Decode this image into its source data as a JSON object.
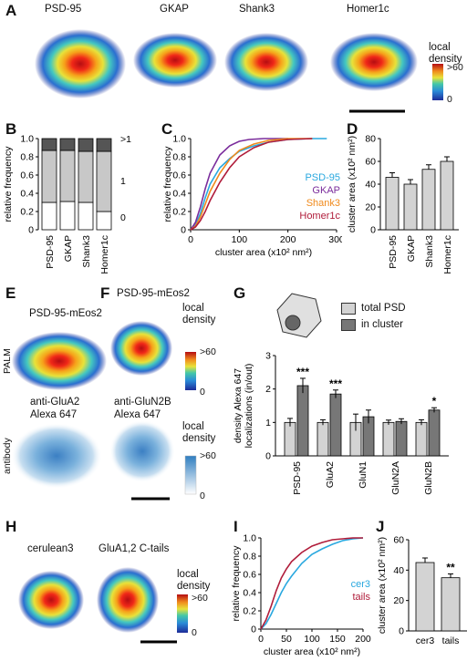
{
  "panels": {
    "A": {
      "letter": "A",
      "titles": [
        "PSD-95",
        "GKAP",
        "Shank3",
        "Homer1c"
      ],
      "density_label": [
        "local",
        "density"
      ],
      "density_max": ">60",
      "density_min": "0"
    },
    "B": {
      "letter": "B"
    },
    "C": {
      "letter": "C"
    },
    "D": {
      "letter": "D"
    },
    "E": {
      "letter": "E",
      "title": "PSD-95-mEos2",
      "row_top": "PALM",
      "antibody_title": [
        "anti-GluA2",
        "Alexa 647"
      ],
      "row_bottom": "antibody"
    },
    "F": {
      "letter": "F",
      "title": "PSD-95-mEos2",
      "antibody_title": [
        "anti-GluN2B",
        "Alexa 647"
      ],
      "density_label": [
        "local",
        "density"
      ],
      "density_max": ">60",
      "density_min": "0",
      "density_label2": [
        "local",
        "density"
      ],
      "density_max2": ">60",
      "density_min2": "0"
    },
    "G": {
      "letter": "G",
      "legend": [
        "total PSD",
        "in cluster"
      ]
    },
    "H": {
      "letter": "H",
      "titles": [
        "cerulean3",
        "GluA1,2 C-tails"
      ],
      "density_label": [
        "local",
        "density"
      ],
      "density_max": ">60",
      "density_min": "0"
    },
    "I": {
      "letter": "I"
    },
    "J": {
      "letter": "J"
    }
  },
  "chart_data": [
    {
      "id": "B",
      "type": "bar",
      "stacked": true,
      "categories": [
        "PSD-95",
        "GKAP",
        "Shank3",
        "Homer1c"
      ],
      "ylabel": "relative frequency",
      "ylim": [
        0,
        1
      ],
      "yticks": [
        "0",
        "0.2",
        "0.4",
        "0.6",
        "0.8",
        "1.0"
      ],
      "series": [
        {
          "name": "0",
          "values": [
            0.3,
            0.31,
            0.3,
            0.2
          ],
          "color": "#ffffff"
        },
        {
          "name": "1",
          "values": [
            0.57,
            0.56,
            0.56,
            0.66
          ],
          "color": "#c8c8c8"
        },
        {
          "name": ">1",
          "values": [
            0.13,
            0.13,
            0.14,
            0.14
          ],
          "color": "#555555"
        }
      ],
      "side_labels": [
        ">1",
        "1",
        "0"
      ]
    },
    {
      "id": "C",
      "type": "line",
      "xlabel": "cluster area (x10² nm²)",
      "ylabel": "relative frequency",
      "xlim": [
        0,
        300
      ],
      "ylim": [
        0,
        1
      ],
      "xticks": [
        "0",
        "100",
        "200",
        "300"
      ],
      "yticks": [
        "0",
        "0.2",
        "0.4",
        "0.6",
        "0.8",
        "1.0"
      ],
      "series": [
        {
          "name": "PSD-95",
          "color": "#29a8df",
          "x": [
            0,
            10,
            20,
            30,
            40,
            60,
            80,
            100,
            130,
            160,
            200,
            250,
            280
          ],
          "y": [
            0,
            0.05,
            0.18,
            0.35,
            0.5,
            0.68,
            0.78,
            0.86,
            0.92,
            0.96,
            0.99,
            1.0,
            1.0
          ]
        },
        {
          "name": "GKAP",
          "color": "#7b2d9c",
          "x": [
            0,
            10,
            20,
            30,
            40,
            60,
            80,
            100,
            120,
            150,
            200
          ],
          "y": [
            0,
            0.08,
            0.25,
            0.45,
            0.62,
            0.82,
            0.92,
            0.97,
            0.99,
            1.0,
            1.0
          ]
        },
        {
          "name": "Shank3",
          "color": "#f08a1c",
          "x": [
            0,
            10,
            20,
            30,
            40,
            60,
            80,
            100,
            130,
            160,
            200,
            250
          ],
          "y": [
            0,
            0.04,
            0.14,
            0.28,
            0.42,
            0.62,
            0.77,
            0.87,
            0.94,
            0.98,
            1.0,
            1.0
          ]
        },
        {
          "name": "Homer1c",
          "color": "#b01c3a",
          "x": [
            0,
            10,
            20,
            30,
            40,
            60,
            80,
            100,
            130,
            160,
            200,
            250
          ],
          "y": [
            0,
            0.03,
            0.1,
            0.2,
            0.32,
            0.52,
            0.68,
            0.8,
            0.9,
            0.96,
            0.99,
            1.0
          ]
        }
      ]
    },
    {
      "id": "D",
      "type": "bar",
      "categories": [
        "PSD-95",
        "GKAP",
        "Shank3",
        "Homer1c"
      ],
      "values": [
        46,
        40,
        53,
        60
      ],
      "errors": [
        4,
        4,
        4,
        4
      ],
      "ylabel": "cluster area (x10² nm²)",
      "ylim": [
        0,
        80
      ],
      "yticks": [
        "0",
        "20",
        "40",
        "60",
        "80"
      ]
    },
    {
      "id": "G",
      "type": "bar",
      "categories": [
        "PSD-95",
        "GluA2",
        "GluN1",
        "GluN2A",
        "GluN2B"
      ],
      "series": [
        {
          "name": "total PSD",
          "values": [
            1.0,
            1.0,
            1.0,
            1.0,
            1.0
          ],
          "errors": [
            0.12,
            0.08,
            0.25,
            0.07,
            0.08
          ]
        },
        {
          "name": "in cluster",
          "values": [
            2.1,
            1.85,
            1.17,
            1.03,
            1.37
          ],
          "errors": [
            0.22,
            0.12,
            0.2,
            0.08,
            0.07
          ]
        }
      ],
      "significance": [
        "***",
        "***",
        "",
        "",
        "*"
      ],
      "ylabel": "density Alexa 647 localizations (in/out)",
      "ylim": [
        0,
        3
      ],
      "yticks": [
        "0",
        "1",
        "2",
        "3"
      ]
    },
    {
      "id": "I",
      "type": "line",
      "xlabel": "cluster area (x10² nm²)",
      "ylabel": "relative frequency",
      "xlim": [
        0,
        200
      ],
      "ylim": [
        0,
        1
      ],
      "xticks": [
        "0",
        "50",
        "100",
        "150",
        "200"
      ],
      "yticks": [
        "0",
        "0.2",
        "0.4",
        "0.6",
        "0.8",
        "1.0"
      ],
      "series": [
        {
          "name": "cer3",
          "color": "#29a8df",
          "x": [
            0,
            10,
            20,
            30,
            40,
            50,
            60,
            80,
            100,
            120,
            140,
            160,
            180,
            200
          ],
          "y": [
            0,
            0.06,
            0.16,
            0.28,
            0.4,
            0.5,
            0.58,
            0.72,
            0.82,
            0.88,
            0.93,
            0.97,
            0.99,
            1.0
          ]
        },
        {
          "name": "tails",
          "color": "#b01c3a",
          "x": [
            0,
            10,
            20,
            30,
            40,
            50,
            60,
            80,
            100,
            120,
            140,
            160,
            180,
            200
          ],
          "y": [
            0,
            0.1,
            0.25,
            0.42,
            0.56,
            0.66,
            0.74,
            0.84,
            0.91,
            0.95,
            0.98,
            0.99,
            1.0,
            1.0
          ]
        }
      ]
    },
    {
      "id": "J",
      "type": "bar",
      "categories": [
        "cer3",
        "tails"
      ],
      "values": [
        45,
        35
      ],
      "errors": [
        3,
        2.5
      ],
      "significance": [
        "",
        "**"
      ],
      "ylabel": "cluster area (x10² nm²)",
      "ylim": [
        0,
        60
      ],
      "yticks": [
        "0",
        "20",
        "40",
        "60"
      ]
    }
  ]
}
